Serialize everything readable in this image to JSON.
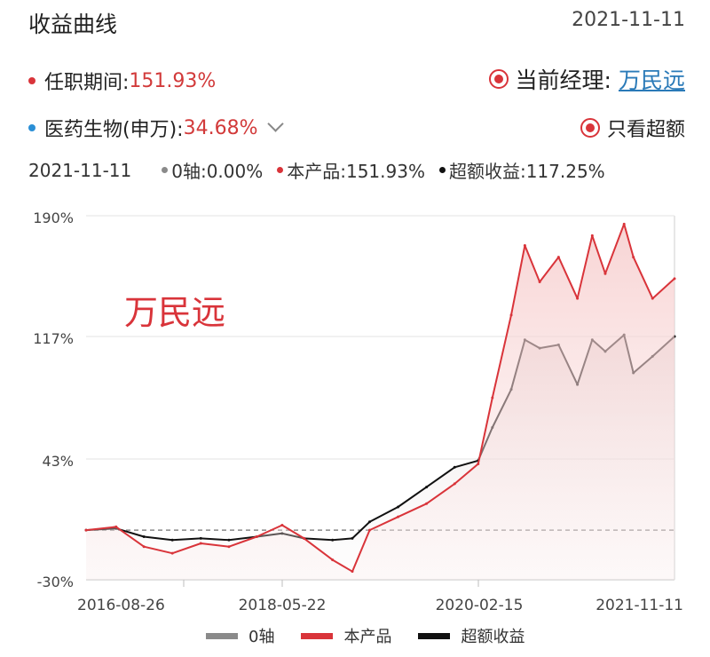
{
  "header": {
    "title": "收益曲线",
    "date": "2021-11-11"
  },
  "tenure": {
    "label": "任职期间:",
    "value": "151.93%",
    "color": "#d23a3a"
  },
  "manager": {
    "label": "当前经理:",
    "name": "万民远"
  },
  "benchmark": {
    "label": "医药生物(申万):",
    "value": "34.68%",
    "color": "#2a8fd6"
  },
  "excess_toggle": {
    "label": "只看超额"
  },
  "summary": {
    "date": "2021-11-11",
    "zero": "0轴:0.00%",
    "product": "本产品:151.93%",
    "excess": "超额收益:117.25%"
  },
  "colors": {
    "zero": "#8a8a8a",
    "product": "#d9343a",
    "excess": "#111111",
    "accent": "#d9343a"
  },
  "chart_data": {
    "type": "line",
    "annotation": "万民远",
    "y_ticks": [
      "190%",
      "117%",
      "43%",
      "-30%"
    ],
    "ylim": [
      -30,
      190
    ],
    "x_ticks": [
      "2016-08-26",
      "2018-05-22",
      "2020-02-15",
      "2021-11-11"
    ],
    "x": [
      "2016-08-26",
      "2016-12-01",
      "2017-03-01",
      "2017-06-01",
      "2017-09-01",
      "2017-12-01",
      "2018-03-01",
      "2018-05-22",
      "2018-08-01",
      "2018-11-01",
      "2019-01-04",
      "2019-03-01",
      "2019-06-01",
      "2019-09-01",
      "2019-12-01",
      "2020-02-15",
      "2020-04-01",
      "2020-06-01",
      "2020-07-15",
      "2020-09-01",
      "2020-11-01",
      "2021-01-01",
      "2021-02-18",
      "2021-04-01",
      "2021-06-01",
      "2021-07-01",
      "2021-09-01",
      "2021-11-11"
    ],
    "series": [
      {
        "name": "0轴",
        "values": [
          0,
          0,
          0,
          0,
          0,
          0,
          0,
          0,
          0,
          0,
          0,
          0,
          0,
          0,
          0,
          0,
          0,
          0,
          0,
          0,
          0,
          0,
          0,
          0,
          0,
          0,
          0,
          0
        ]
      },
      {
        "name": "本产品",
        "values": [
          0,
          2,
          -10,
          -14,
          -8,
          -10,
          -4,
          3,
          -5,
          -18,
          -25,
          0,
          8,
          16,
          28,
          40,
          80,
          130,
          172,
          150,
          165,
          140,
          178,
          155,
          185,
          165,
          140,
          152
        ]
      },
      {
        "name": "超额收益",
        "values": [
          0,
          1,
          -4,
          -6,
          -5,
          -6,
          -4,
          -2,
          -5,
          -6,
          -5,
          5,
          14,
          26,
          38,
          42,
          62,
          85,
          115,
          110,
          112,
          88,
          115,
          108,
          118,
          95,
          105,
          117
        ]
      }
    ]
  }
}
